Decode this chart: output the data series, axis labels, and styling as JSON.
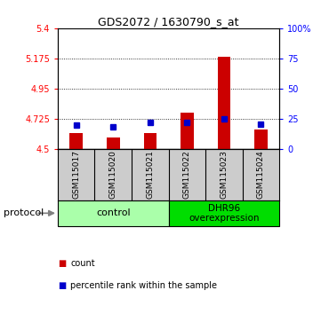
{
  "title": "GDS2072 / 1630790_s_at",
  "samples": [
    "GSM115017",
    "GSM115020",
    "GSM115021",
    "GSM115022",
    "GSM115023",
    "GSM115024"
  ],
  "red_values": [
    4.62,
    4.585,
    4.62,
    4.77,
    5.19,
    4.645
  ],
  "blue_values": [
    4.675,
    4.665,
    4.695,
    4.695,
    4.722,
    4.685
  ],
  "ylim_left": [
    4.5,
    5.4
  ],
  "yticks_left": [
    4.5,
    4.725,
    4.95,
    5.175,
    5.4
  ],
  "ytick_labels_left": [
    "4.5",
    "4.725",
    "4.95",
    "5.175",
    "5.4"
  ],
  "yticks_right": [
    0,
    25,
    50,
    75,
    100
  ],
  "ytick_labels_right": [
    "0",
    "25",
    "50",
    "75",
    "100%"
  ],
  "ylim_right": [
    0,
    100
  ],
  "control_count": 3,
  "overexp_count": 3,
  "control_label": "control",
  "overexp_label": "DHR96\noverexpression",
  "protocol_label": "protocol",
  "legend_red": "count",
  "legend_blue": "percentile rank within the sample",
  "bar_color_red": "#cc0000",
  "bar_color_blue": "#0000cc",
  "control_bg": "#aaffaa",
  "overexp_bg": "#00dd00",
  "sample_bg": "#cccccc",
  "bar_width": 0.35
}
